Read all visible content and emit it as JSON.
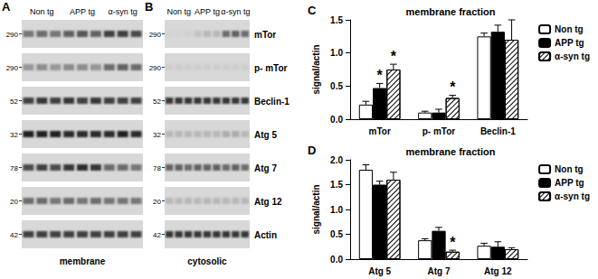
{
  "blots": [
    {
      "letter": "A",
      "groups": [
        "Non tg",
        "APP tg",
        "α-syn tg"
      ],
      "fraction": "membrane",
      "rows": [
        {
          "mw": 290,
          "intensity": [
            0.45,
            0.5,
            0.45,
            0.55,
            0.6,
            0.55,
            0.7,
            0.7,
            0.65
          ]
        },
        {
          "mw": 290,
          "intensity": [
            0.3,
            0.35,
            0.3,
            0.35,
            0.35,
            0.3,
            0.5,
            0.55,
            0.5
          ]
        },
        {
          "mw": 52,
          "intensity": [
            0.7,
            0.75,
            0.7,
            0.75,
            0.7,
            0.75,
            0.7,
            0.7,
            0.7
          ]
        },
        {
          "mw": 32,
          "intensity": [
            0.85,
            0.85,
            0.85,
            0.8,
            0.8,
            0.8,
            0.8,
            0.85,
            0.8
          ]
        },
        {
          "mw": 78,
          "intensity": [
            0.65,
            0.7,
            0.65,
            0.75,
            0.8,
            0.75,
            0.5,
            0.5,
            0.45
          ]
        },
        {
          "mw": 20,
          "intensity": [
            0.5,
            0.5,
            0.45,
            0.5,
            0.45,
            0.5,
            0.45,
            0.45,
            0.45
          ]
        },
        {
          "mw": 42,
          "intensity": [
            0.7,
            0.7,
            0.7,
            0.7,
            0.7,
            0.7,
            0.7,
            0.7,
            0.7
          ]
        }
      ]
    },
    {
      "letter": "B",
      "groups": [
        "Non tg",
        "APP tg",
        "α-syn tg"
      ],
      "fraction": "cytosolic",
      "rows": [
        {
          "mw": 290,
          "name": "mTor",
          "intensity": [
            0.02,
            0.02,
            0.03,
            0.1,
            0.15,
            0.15,
            0.5,
            0.55,
            0.5
          ]
        },
        {
          "mw": 290,
          "name": "p- mTor",
          "intensity": [
            0.05,
            0.05,
            0.05,
            0.05,
            0.05,
            0.05,
            0.05,
            0.05,
            0.05
          ]
        },
        {
          "mw": 52,
          "name": "Beclin-1",
          "intensity": [
            0.75,
            0.75,
            0.75,
            0.75,
            0.75,
            0.75,
            0.75,
            0.75,
            0.75
          ]
        },
        {
          "mw": 32,
          "name": "Atg 5",
          "intensity": [
            0.15,
            0.15,
            0.15,
            0.15,
            0.15,
            0.15,
            0.2,
            0.2,
            0.15
          ]
        },
        {
          "mw": 78,
          "name": "Atg 7",
          "intensity": [
            0.55,
            0.55,
            0.5,
            0.55,
            0.55,
            0.55,
            0.5,
            0.55,
            0.5
          ]
        },
        {
          "mw": 20,
          "name": "Atg 12",
          "intensity": [
            0.15,
            0.15,
            0.15,
            0.15,
            0.15,
            0.15,
            0.15,
            0.15,
            0.15
          ]
        },
        {
          "mw": 42,
          "name": "Actin",
          "intensity": [
            0.75,
            0.75,
            0.75,
            0.75,
            0.75,
            0.75,
            0.75,
            0.75,
            0.75
          ]
        }
      ]
    }
  ],
  "chart_data": [
    {
      "type": "bar",
      "panel_label": "C",
      "title": "membrane fraction",
      "y_label": "signal/actin",
      "categories": [
        "mTor",
        "p- mTor",
        "Beclin-1"
      ],
      "series": [
        {
          "name": "Non tg",
          "color": "#ffffff",
          "values": [
            0.22,
            0.1,
            1.25
          ],
          "errors": [
            0.05,
            0.02,
            0.05
          ]
        },
        {
          "name": "APP tg",
          "color": "#000000",
          "values": [
            0.47,
            0.1,
            1.32
          ],
          "errors": [
            0.07,
            0.05,
            0.1
          ]
        },
        {
          "name": "α-syn tg",
          "color": "#ffffff",
          "marker": "hatched",
          "values": [
            0.75,
            0.32,
            1.2
          ],
          "errors": [
            0.08,
            0.04,
            0.3
          ]
        }
      ],
      "annotations": [
        {
          "text": "*",
          "category": "mTor",
          "series": "APP tg"
        },
        {
          "text": "*",
          "category": "mTor",
          "series": "α-syn tg"
        },
        {
          "text": "*",
          "category": "p- mTor",
          "series": "α-syn tg"
        }
      ],
      "ylim": [
        0,
        1.5
      ],
      "yticks": [
        {
          "value": 0,
          "label": "0.0"
        },
        0.5,
        {
          "value": 1,
          "label": "1.0"
        },
        1.5
      ],
      "grid": false,
      "legend": "upper right"
    },
    {
      "type": "bar",
      "panel_label": "D",
      "title": "membrane fraction",
      "y_label": "signal/actin",
      "categories": [
        "Atg 5",
        "Atg 7",
        "Atg 12"
      ],
      "series": [
        {
          "name": "Non tg",
          "color": "#ffffff",
          "values": [
            1.8,
            0.38,
            0.27
          ],
          "errors": [
            0.1,
            0.03,
            0.05
          ]
        },
        {
          "name": "APP tg",
          "color": "#000000",
          "values": [
            1.5,
            0.57,
            0.25
          ],
          "errors": [
            0.07,
            0.07,
            0.1
          ]
        },
        {
          "name": "α-syn tg",
          "color": "#ffffff",
          "marker": "hatched",
          "values": [
            1.6,
            0.15,
            0.2
          ],
          "errors": [
            0.15,
            0.03,
            0.03
          ]
        }
      ],
      "annotations": [
        {
          "text": "*",
          "category": "Atg 7",
          "series": "α-syn tg"
        }
      ],
      "ylim": [
        0,
        2
      ],
      "yticks": [
        {
          "value": 0,
          "label": "0.0"
        },
        0.5,
        {
          "value": 1,
          "label": "1.0"
        },
        1.5,
        {
          "value": 2,
          "label": "2.0"
        }
      ],
      "grid": false,
      "legend": "upper right"
    }
  ]
}
